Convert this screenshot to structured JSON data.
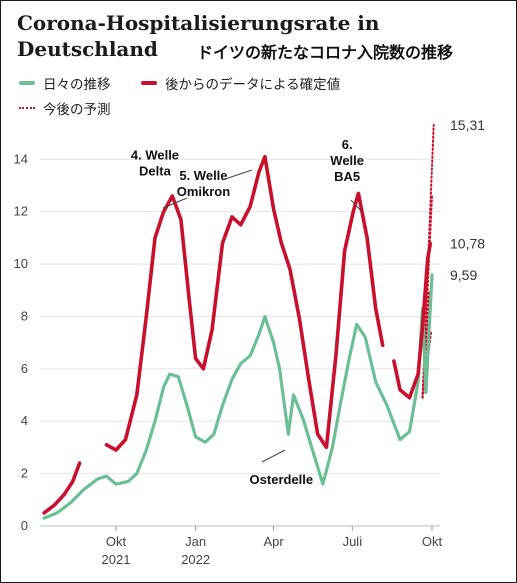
{
  "title": "Corona-Hospitalisierungsrate in Deutschland",
  "subtitle_jp": "ドイツの新たなコロナ入院数の推移",
  "legend": {
    "daily": "日々の推移",
    "confirmed": "後からのデータによる確定値",
    "forecast": "今後の予測"
  },
  "colors": {
    "daily": "#6cbf94",
    "confirmed": "#c8102e",
    "forecast": "#c8102e",
    "grid": "#e4e4e4"
  },
  "chart_data": {
    "type": "line",
    "xlabel": "",
    "ylabel": "",
    "ylim": [
      0,
      15.5
    ],
    "y_ticks": [
      0,
      2,
      4,
      6,
      8,
      10,
      12,
      14
    ],
    "x_ticks": [
      {
        "date": "2021-10-01",
        "label": "Okt",
        "sublabel": "2021"
      },
      {
        "date": "2022-01-01",
        "label": "Jan",
        "sublabel": "2022"
      },
      {
        "date": "2022-04-01",
        "label": "Apr",
        "sublabel": ""
      },
      {
        "date": "2022-07-01",
        "label": "Juli",
        "sublabel": ""
      },
      {
        "date": "2022-10-01",
        "label": "Okt",
        "sublabel": ""
      }
    ],
    "grid": "horizontal",
    "legend_position": "top-left",
    "series": [
      {
        "name": "日々の推移",
        "key": "daily",
        "points": [
          [
            "2021-07-10",
            0.3
          ],
          [
            "2021-07-25",
            0.5
          ],
          [
            "2021-08-10",
            0.9
          ],
          [
            "2021-08-25",
            1.4
          ],
          [
            "2021-09-10",
            1.8
          ],
          [
            "2021-09-20",
            1.9
          ],
          [
            "2021-10-01",
            1.6
          ],
          [
            "2021-10-15",
            1.7
          ],
          [
            "2021-10-25",
            2.0
          ],
          [
            "2021-11-05",
            2.9
          ],
          [
            "2021-11-15",
            4.0
          ],
          [
            "2021-11-25",
            5.3
          ],
          [
            "2021-12-02",
            5.8
          ],
          [
            "2021-12-12",
            5.7
          ],
          [
            "2021-12-22",
            4.6
          ],
          [
            "2022-01-01",
            3.4
          ],
          [
            "2022-01-12",
            3.2
          ],
          [
            "2022-01-22",
            3.5
          ],
          [
            "2022-02-01",
            4.6
          ],
          [
            "2022-02-12",
            5.6
          ],
          [
            "2022-02-22",
            6.2
          ],
          [
            "2022-03-05",
            6.5
          ],
          [
            "2022-03-15",
            7.3
          ],
          [
            "2022-03-22",
            8.0
          ],
          [
            "2022-04-01",
            7.0
          ],
          [
            "2022-04-08",
            6.0
          ],
          [
            "2022-04-14",
            4.5
          ],
          [
            "2022-04-18",
            3.5
          ],
          [
            "2022-04-24",
            5.0
          ],
          [
            "2022-05-05",
            4.1
          ],
          [
            "2022-05-15",
            3.0
          ],
          [
            "2022-05-28",
            1.6
          ],
          [
            "2022-06-08",
            3.0
          ],
          [
            "2022-06-18",
            4.8
          ],
          [
            "2022-06-28",
            6.5
          ],
          [
            "2022-07-06",
            7.7
          ],
          [
            "2022-07-16",
            7.2
          ],
          [
            "2022-07-28",
            5.5
          ],
          [
            "2022-08-10",
            4.6
          ],
          [
            "2022-08-25",
            3.3
          ],
          [
            "2022-09-05",
            3.6
          ],
          [
            "2022-09-15",
            5.5
          ],
          [
            "2022-09-20",
            8.3
          ],
          [
            "2022-09-24",
            5.1
          ],
          [
            "2022-10-01",
            9.59
          ]
        ]
      },
      {
        "name": "後からのデータによる確定値",
        "key": "confirmed",
        "segments": [
          [
            [
              "2021-07-10",
              0.5
            ],
            [
              "2021-07-22",
              0.8
            ],
            [
              "2021-08-02",
              1.2
            ],
            [
              "2021-08-12",
              1.7
            ],
            [
              "2021-08-20",
              2.4
            ]
          ],
          [
            [
              "2021-09-20",
              3.1
            ],
            [
              "2021-10-01",
              2.9
            ],
            [
              "2021-10-12",
              3.3
            ],
            [
              "2021-10-25",
              5.0
            ],
            [
              "2021-11-05",
              8.0
            ],
            [
              "2021-11-15",
              11.0
            ],
            [
              "2021-11-25",
              12.0
            ],
            [
              "2021-12-05",
              12.6
            ],
            [
              "2021-12-15",
              11.7
            ],
            [
              "2021-12-25",
              8.5
            ],
            [
              "2022-01-01",
              6.4
            ],
            [
              "2022-01-10",
              6.0
            ],
            [
              "2022-01-20",
              7.5
            ],
            [
              "2022-02-01",
              10.8
            ],
            [
              "2022-02-12",
              11.8
            ],
            [
              "2022-02-22",
              11.5
            ],
            [
              "2022-03-05",
              12.2
            ],
            [
              "2022-03-15",
              13.5
            ],
            [
              "2022-03-22",
              14.1
            ],
            [
              "2022-04-01",
              12.1
            ],
            [
              "2022-04-10",
              10.8
            ],
            [
              "2022-04-20",
              9.8
            ],
            [
              "2022-05-01",
              7.9
            ],
            [
              "2022-05-12",
              5.5
            ],
            [
              "2022-05-22",
              3.5
            ],
            [
              "2022-06-01",
              3.0
            ],
            [
              "2022-06-12",
              6.5
            ],
            [
              "2022-06-22",
              10.5
            ],
            [
              "2022-07-02",
              12.0
            ],
            [
              "2022-07-08",
              12.7
            ],
            [
              "2022-07-18",
              11.0
            ],
            [
              "2022-07-28",
              8.3
            ],
            [
              "2022-08-05",
              6.9
            ]
          ],
          [
            [
              "2022-08-18",
              6.3
            ],
            [
              "2022-08-25",
              5.2
            ],
            [
              "2022-09-05",
              4.9
            ],
            [
              "2022-09-15",
              5.8
            ],
            [
              "2022-09-20",
              7.6
            ],
            [
              "2022-09-26",
              10.2
            ],
            [
              "2022-09-29",
              10.78
            ]
          ]
        ]
      },
      {
        "name": "今後の予測",
        "key": "forecast",
        "fan": {
          "origin": [
            "2022-09-20",
            4.9
          ],
          "tips": [
            [
              "2022-10-03",
              15.31
            ],
            [
              "2022-10-01",
              12.6
            ],
            [
              "2022-09-28",
              9.0
            ],
            [
              "2022-09-30",
              7.4
            ]
          ]
        }
      }
    ],
    "end_labels": [
      "15,31",
      "10,78",
      "9,59"
    ],
    "annotations": [
      {
        "text": "4. Welle\nDelta",
        "date": "2021-11-15",
        "y": 14.0
      },
      {
        "text": "5. Welle\nOmikron",
        "date": "2022-01-10",
        "y": 13.2
      },
      {
        "text": "6.\nWelle\nBA5",
        "date": "2022-06-25",
        "y": 14.4
      },
      {
        "text": "Osterdelle",
        "date": "2022-04-10",
        "y": 1.6
      }
    ]
  }
}
